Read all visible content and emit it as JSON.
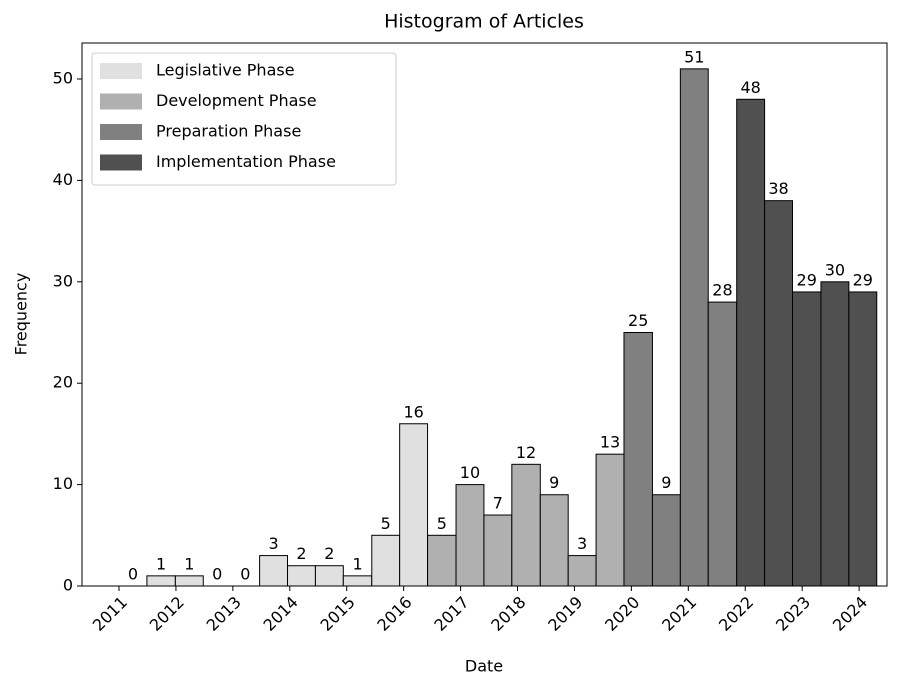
{
  "chart_data": {
    "type": "histogram",
    "title": "Histogram of Articles",
    "x_label": "Date",
    "y_label": "Frequency",
    "xlim": [
      2010.35,
      2024.49
    ],
    "ylim": [
      0,
      53.55
    ],
    "xticks": [
      2011,
      2012,
      2013,
      2014,
      2015,
      2016,
      2017,
      2018,
      2019,
      2020,
      2021,
      2022,
      2023,
      2024
    ],
    "yticks": [
      0,
      10,
      20,
      30,
      40,
      50
    ],
    "legend": "upper left",
    "series": [
      {
        "name": "Legislative Phase",
        "color": "#e0e0e0",
        "bins": [
          2011,
          2011.49,
          2011.99,
          2012.48,
          2012.97,
          2013.47,
          2013.96,
          2014.45,
          2014.94,
          2015.44,
          2015.93,
          2016.42
        ],
        "values": [
          0,
          1,
          1,
          0,
          0,
          3,
          2,
          2,
          1,
          5,
          16
        ]
      },
      {
        "name": "Development Phase",
        "color": "#b0b0b0",
        "bins": [
          2016.42,
          2016.92,
          2017.41,
          2017.9,
          2018.4,
          2018.89,
          2019.38,
          2019.87
        ],
        "values": [
          5,
          10,
          7,
          12,
          9,
          3,
          13
        ]
      },
      {
        "name": "Preparation Phase",
        "color": "#808080",
        "bins": [
          2019.87,
          2020.37,
          2020.86,
          2021.35,
          2021.85
        ],
        "values": [
          25,
          9,
          51,
          28
        ]
      },
      {
        "name": "Implementation Phase",
        "color": "#505050",
        "bins": [
          2021.85,
          2022.34,
          2022.83,
          2023.33,
          2023.82,
          2024.31
        ],
        "values": [
          48,
          38,
          29,
          30,
          29
        ]
      }
    ]
  }
}
